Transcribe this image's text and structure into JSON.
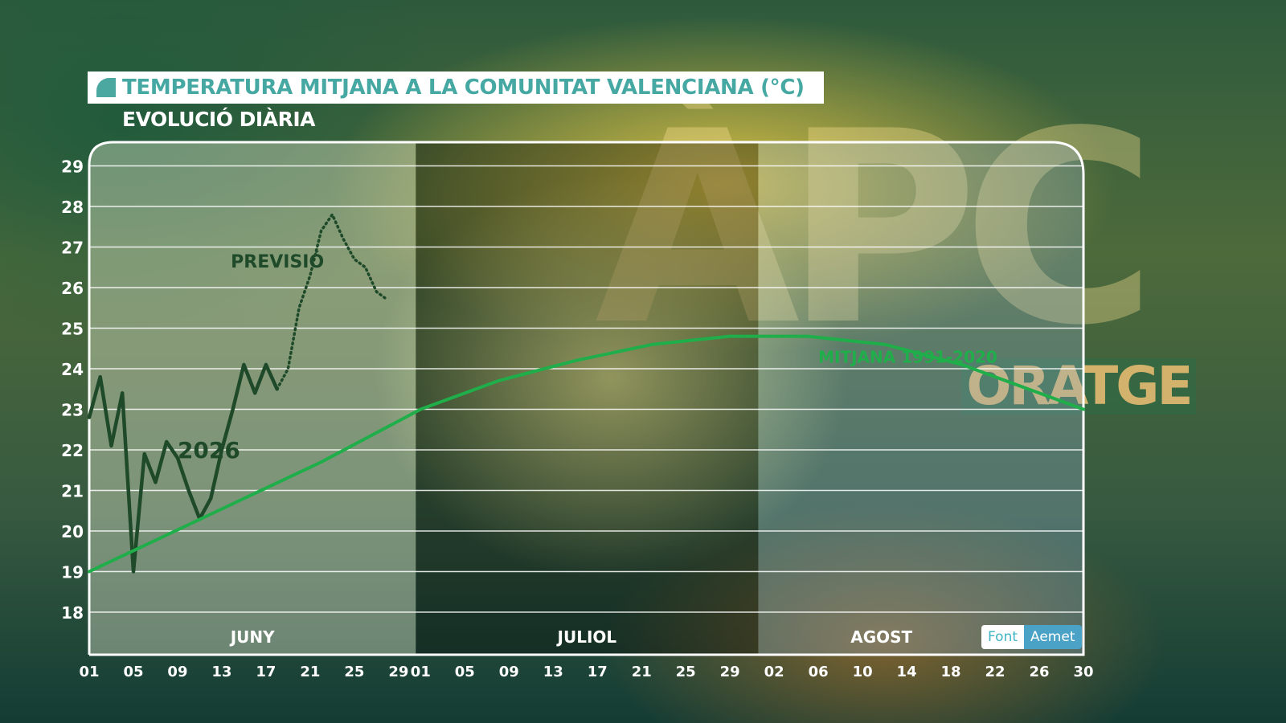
{
  "title": "TEMPERATURA MITJANA A LA COMUNITAT VALENCIANA (°C)",
  "subtitle": "EVOLUCIÓ DIÀRIA",
  "brand": {
    "logo_text": "ÀPC",
    "program": "ORATGE"
  },
  "source": {
    "label": "Font",
    "value": "Aemet"
  },
  "colors": {
    "title_text": "#46a8a2",
    "line_2026": "#1f4a2a",
    "line_mitjana": "#1fae4a",
    "forecast_label": "#1f4a2a"
  },
  "chart_data": {
    "type": "line",
    "title": "TEMPERATURA MITJANA A LA COMUNITAT VALENCIANA (°C)",
    "subtitle": "EVOLUCIÓ DIÀRIA",
    "ylim": [
      18,
      29
    ],
    "y_ticks": [
      "18",
      "19",
      "20",
      "21",
      "22",
      "23",
      "24",
      "25",
      "26",
      "27",
      "28",
      "29"
    ],
    "x_range": [
      "2026-06-01",
      "2026-08-30"
    ],
    "x_ticks": [
      "01",
      "05",
      "09",
      "13",
      "17",
      "21",
      "25",
      "29",
      "01",
      "05",
      "09",
      "13",
      "17",
      "21",
      "25",
      "29",
      "02",
      "06",
      "10",
      "14",
      "18",
      "22",
      "26",
      "30"
    ],
    "months": [
      "JUNY",
      "JULIOL",
      "AGOST"
    ],
    "grid": true,
    "series": [
      {
        "name": "2026",
        "style": "solid",
        "x": [
          "2026-06-01",
          "2026-06-02",
          "2026-06-03",
          "2026-06-04",
          "2026-06-05",
          "2026-06-06",
          "2026-06-07",
          "2026-06-08",
          "2026-06-09",
          "2026-06-10",
          "2026-06-11",
          "2026-06-12",
          "2026-06-13",
          "2026-06-14",
          "2026-06-15",
          "2026-06-16",
          "2026-06-17",
          "2026-06-18"
        ],
        "values": [
          22.8,
          23.8,
          22.1,
          23.4,
          19.0,
          21.9,
          21.2,
          22.2,
          21.8,
          21.0,
          20.3,
          20.8,
          22.0,
          23.0,
          24.1,
          23.4,
          24.1,
          23.5
        ]
      },
      {
        "name": "PREVISIÓ",
        "style": "dotted",
        "x": [
          "2026-06-18",
          "2026-06-19",
          "2026-06-20",
          "2026-06-21",
          "2026-06-22",
          "2026-06-23",
          "2026-06-24",
          "2026-06-25",
          "2026-06-26",
          "2026-06-27",
          "2026-06-28"
        ],
        "values": [
          23.5,
          24.0,
          25.5,
          26.3,
          27.4,
          27.8,
          27.2,
          26.7,
          26.5,
          25.9,
          25.7
        ]
      },
      {
        "name": "MITJANA 1991-2020",
        "style": "solid",
        "x": [
          "2026-06-01",
          "2026-06-08",
          "2026-06-15",
          "2026-06-22",
          "2026-07-01",
          "2026-07-08",
          "2026-07-15",
          "2026-07-22",
          "2026-07-29",
          "2026-08-05",
          "2026-08-12",
          "2026-08-19",
          "2026-08-26",
          "2026-08-30"
        ],
        "values": [
          19.0,
          19.9,
          20.8,
          21.7,
          23.0,
          23.7,
          24.2,
          24.6,
          24.8,
          24.8,
          24.6,
          24.1,
          23.4,
          23.0
        ]
      }
    ]
  }
}
